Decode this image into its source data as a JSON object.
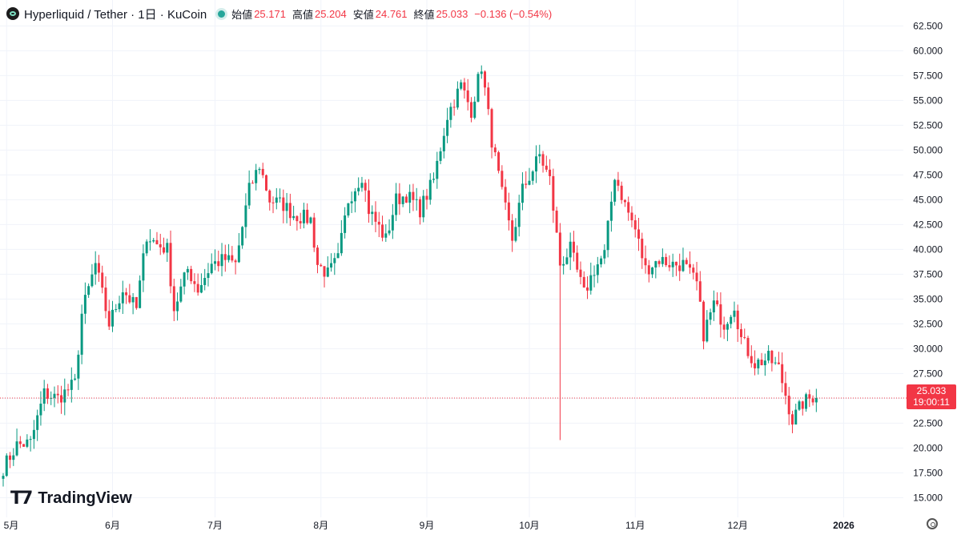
{
  "header": {
    "title": "Hyperliquid / Tether · 1日 · KuCoin",
    "open_label": "始値",
    "open_value": "25.171",
    "high_label": "高値",
    "high_value": "25.204",
    "low_label": "安値",
    "low_value": "24.761",
    "close_label": "終値",
    "close_value": "25.033",
    "change": "−0.136 (−0.54%)"
  },
  "branding": {
    "name": "TradingView"
  },
  "last_price": {
    "value": "25.033",
    "countdown": "19:00:11"
  },
  "icons": {
    "logo": "hyperliquid-logo-icon",
    "live": "live-status-dot-icon",
    "settings": "gear-icon"
  },
  "colors": {
    "up": "#089981",
    "down": "#f23645",
    "grid": "#f0f3fa",
    "text": "#131722"
  },
  "chart_data": {
    "type": "candlestick",
    "interval": "1日",
    "ylim": [
      13.5,
      63.5
    ],
    "y_ticks": [
      "62.500",
      "60.000",
      "57.500",
      "55.000",
      "52.500",
      "50.000",
      "47.500",
      "45.000",
      "42.500",
      "40.000",
      "37.500",
      "35.000",
      "32.500",
      "30.000",
      "27.500",
      "25.000",
      "22.500",
      "20.000",
      "17.500",
      "15.000"
    ],
    "x_ticks": [
      {
        "label": "5月",
        "date": "2025-05-01"
      },
      {
        "label": "6月",
        "date": "2025-06-01"
      },
      {
        "label": "7月",
        "date": "2025-07-01"
      },
      {
        "label": "8月",
        "date": "2025-08-01"
      },
      {
        "label": "9月",
        "date": "2025-09-01"
      },
      {
        "label": "10月",
        "date": "2025-10-01"
      },
      {
        "label": "11月",
        "date": "2025-11-01"
      },
      {
        "label": "12月",
        "date": "2025-12-01"
      },
      {
        "label": "2026",
        "date": "2026-01-01"
      }
    ],
    "start_date": "2025-04-30",
    "end_date": "2026-01-03",
    "anchors": [
      [
        "2025-04-30",
        18.0
      ],
      [
        "2025-05-04",
        20.3
      ],
      [
        "2025-05-08",
        20.5
      ],
      [
        "2025-05-12",
        25.5
      ],
      [
        "2025-05-16",
        25.0
      ],
      [
        "2025-05-21",
        26.5
      ],
      [
        "2025-05-23",
        33.5
      ],
      [
        "2025-05-27",
        38.5
      ],
      [
        "2025-05-31",
        32.5
      ],
      [
        "2025-06-04",
        36.0
      ],
      [
        "2025-06-08",
        34.0
      ],
      [
        "2025-06-11",
        41.5
      ],
      [
        "2025-06-14",
        40.5
      ],
      [
        "2025-06-17",
        40.0
      ],
      [
        "2025-06-19",
        34.0
      ],
      [
        "2025-06-23",
        38.0
      ],
      [
        "2025-06-26",
        36.0
      ],
      [
        "2025-06-30",
        38.5
      ],
      [
        "2025-07-04",
        39.0
      ],
      [
        "2025-07-07",
        38.5
      ],
      [
        "2025-07-11",
        46.0
      ],
      [
        "2025-07-14",
        48.5
      ],
      [
        "2025-07-17",
        45.0
      ],
      [
        "2025-07-21",
        44.5
      ],
      [
        "2025-07-24",
        43.5
      ],
      [
        "2025-07-29",
        43.0
      ],
      [
        "2025-07-31",
        38.5
      ],
      [
        "2025-08-03",
        37.5
      ],
      [
        "2025-08-06",
        39.0
      ],
      [
        "2025-08-09",
        45.0
      ],
      [
        "2025-08-13",
        47.5
      ],
      [
        "2025-08-15",
        44.0
      ],
      [
        "2025-08-20",
        41.0
      ],
      [
        "2025-08-23",
        45.0
      ],
      [
        "2025-08-26",
        45.5
      ],
      [
        "2025-08-30",
        44.0
      ],
      [
        "2025-09-03",
        47.0
      ],
      [
        "2025-09-07",
        53.5
      ],
      [
        "2025-09-11",
        56.5
      ],
      [
        "2025-09-14",
        54.0
      ],
      [
        "2025-09-17",
        58.5
      ],
      [
        "2025-09-20",
        51.0
      ],
      [
        "2025-09-23",
        45.5
      ],
      [
        "2025-09-26",
        41.0
      ],
      [
        "2025-09-29",
        46.0
      ],
      [
        "2025-10-02",
        48.0
      ],
      [
        "2025-10-04",
        49.5
      ],
      [
        "2025-10-07",
        47.0
      ],
      [
        "2025-10-10",
        38.5
      ],
      [
        "2025-10-13",
        40.0
      ],
      [
        "2025-10-17",
        35.5
      ],
      [
        "2025-10-20",
        38.0
      ],
      [
        "2025-10-23",
        39.5
      ],
      [
        "2025-10-26",
        47.5
      ],
      [
        "2025-10-29",
        44.5
      ],
      [
        "2025-11-01",
        42.0
      ],
      [
        "2025-11-04",
        38.0
      ],
      [
        "2025-11-08",
        39.0
      ],
      [
        "2025-11-12",
        38.5
      ],
      [
        "2025-11-15",
        38.5
      ],
      [
        "2025-11-19",
        36.5
      ],
      [
        "2025-11-21",
        31.5
      ],
      [
        "2025-11-24",
        34.5
      ],
      [
        "2025-11-27",
        32.5
      ],
      [
        "2025-11-30",
        34.5
      ],
      [
        "2025-12-02",
        31.0
      ],
      [
        "2025-12-06",
        28.5
      ],
      [
        "2025-12-10",
        29.0
      ],
      [
        "2025-12-13",
        28.0
      ],
      [
        "2025-12-17",
        22.8
      ],
      [
        "2025-12-20",
        24.5
      ],
      [
        "2025-12-23",
        25.2
      ],
      [
        "2025-12-24",
        25.033
      ]
    ],
    "special_wicks": [
      {
        "date": "2025-10-10",
        "low": 20.8
      }
    ],
    "last_close": 25.033
  }
}
